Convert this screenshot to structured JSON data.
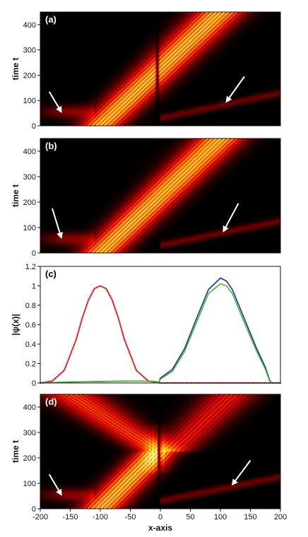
{
  "chart_data": [
    {
      "id": "a",
      "type": "heatmap",
      "panel_label": "(a)",
      "panel_label_color": "#ffffff",
      "ylabel": "time t",
      "xlim": [
        -200,
        200
      ],
      "ylim": [
        0,
        450
      ],
      "yticks": [
        0,
        100,
        200,
        300,
        400
      ],
      "colormap": "hot",
      "features": {
        "main_beam": {
          "x_at_t0": -100,
          "x_at_tmax": 100,
          "fringe_period": 7
        },
        "dark_line_x": -5,
        "faint_track": {
          "from": [
            0,
            30
          ],
          "to": [
            200,
            130
          ]
        },
        "left_residual": [
          -200,
          -110
        ]
      },
      "arrows": [
        {
          "from": [
            -185,
            135
          ],
          "to": [
            -165,
            55
          ]
        },
        {
          "from": [
            140,
            195
          ],
          "to": [
            110,
            95
          ]
        }
      ]
    },
    {
      "id": "b",
      "type": "heatmap",
      "panel_label": "(b)",
      "panel_label_color": "#ffffff",
      "ylabel": "time t",
      "xlim": [
        -200,
        200
      ],
      "ylim": [
        0,
        450
      ],
      "yticks": [
        0,
        100,
        200,
        300,
        400
      ],
      "colormap": "hot",
      "features": {
        "main_beam": {
          "x_at_t0": -100,
          "x_at_tmax": 100,
          "fringe_period": 7
        },
        "faint_track": {
          "from": [
            0,
            30
          ],
          "to": [
            200,
            125
          ]
        },
        "left_residual": [
          -200,
          -110
        ]
      },
      "arrows": [
        {
          "from": [
            -180,
            175
          ],
          "to": [
            -165,
            60
          ]
        },
        {
          "from": [
            130,
            195
          ],
          "to": [
            105,
            85
          ]
        }
      ]
    },
    {
      "id": "c",
      "type": "line",
      "panel_label": "(c)",
      "panel_label_color": "#000000",
      "ylabel": "|ψ(x)|",
      "xlim": [
        -200,
        200
      ],
      "ylim": [
        0,
        1.2
      ],
      "yticks": [
        0,
        0.2,
        0.4,
        0.6,
        0.8,
        1,
        1.2
      ],
      "series": [
        {
          "style": "dotted",
          "color": "#e0262a",
          "x": [
            -200,
            -180,
            -160,
            -140,
            -130,
            -120,
            -110,
            -100,
            -90,
            -80,
            -70,
            -60,
            -40,
            -20,
            0,
            200
          ],
          "y": [
            0.0,
            0.02,
            0.13,
            0.45,
            0.67,
            0.85,
            0.97,
            1.0,
            0.97,
            0.85,
            0.67,
            0.45,
            0.13,
            0.02,
            0.0,
            0.0
          ]
        },
        {
          "style": "solid",
          "color": "#1a2fa8",
          "x": [
            -200,
            -150,
            -100,
            -50,
            -20,
            -2,
            0,
            20,
            40,
            60,
            80,
            100,
            110,
            120,
            140,
            160,
            175,
            182,
            185,
            200
          ],
          "y": [
            0.0,
            0.01,
            0.015,
            0.02,
            0.02,
            0.01,
            0.05,
            0.14,
            0.35,
            0.66,
            0.96,
            1.08,
            1.05,
            0.96,
            0.66,
            0.36,
            0.16,
            0.03,
            0.0,
            0.0
          ]
        },
        {
          "style": "solid",
          "color": "#49b52d",
          "x": [
            -200,
            -150,
            -100,
            -50,
            -20,
            -2,
            0,
            20,
            40,
            60,
            80,
            100,
            110,
            120,
            140,
            160,
            175,
            182,
            185,
            200
          ],
          "y": [
            0.0,
            0.01,
            0.015,
            0.02,
            0.02,
            0.01,
            0.04,
            0.12,
            0.32,
            0.62,
            0.92,
            1.02,
            1.0,
            0.92,
            0.62,
            0.33,
            0.14,
            0.02,
            0.0,
            0.0
          ]
        }
      ]
    },
    {
      "id": "d",
      "type": "heatmap",
      "panel_label": "(d)",
      "panel_label_color": "#ffffff",
      "ylabel": "time t",
      "xlabel": "x-axis",
      "xlim": [
        -200,
        200
      ],
      "ylim": [
        0,
        450
      ],
      "yticks": [
        0,
        100,
        200,
        300,
        400
      ],
      "xticks": [
        -200,
        -150,
        -100,
        -50,
        0,
        50,
        100,
        150,
        200
      ],
      "colormap": "hot",
      "features": {
        "incoming_beam": {
          "x_at_t0": -100,
          "x_at_tturn": -5,
          "t_turn": 225
        },
        "reflected_beam": {
          "x_at_tturn": -5,
          "x_at_tmax": -150
        },
        "transmitted_beam": {
          "x_at_tturn": 20,
          "x_at_tmax": 120
        },
        "faint_track": {
          "from": [
            0,
            30
          ],
          "to": [
            200,
            125
          ]
        },
        "left_residual": [
          -200,
          -110
        ]
      },
      "arrows": [
        {
          "from": [
            -185,
            135
          ],
          "to": [
            -165,
            55
          ]
        },
        {
          "from": [
            150,
            190
          ],
          "to": [
            120,
            95
          ]
        }
      ]
    }
  ]
}
